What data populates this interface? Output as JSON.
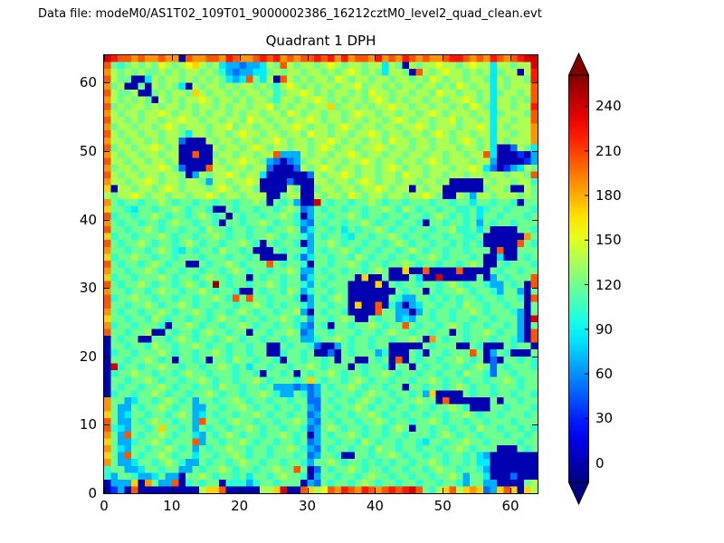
{
  "header": {
    "datafile_text": "Data file: modeM0/AS1T02_109T01_9000002386_16212cztM0_level2_quad_clean.evt"
  },
  "chart_data": {
    "type": "heatmap",
    "title": "Quadrant 1 DPH",
    "xlabel": "",
    "ylabel": "",
    "x_range": [
      0,
      64
    ],
    "y_range": [
      0,
      64
    ],
    "grid_size": 64,
    "x_ticks": [
      "0",
      "10",
      "20",
      "30",
      "40",
      "50",
      "60"
    ],
    "y_ticks": [
      "0",
      "10",
      "20",
      "30",
      "40",
      "50",
      "60"
    ],
    "colormap": "jet",
    "legend_position": "right-colorbar",
    "grid_lines": false,
    "colorbar": {
      "tick_labels": [
        "0",
        "30",
        "60",
        "90",
        "120",
        "150",
        "180",
        "210",
        "240"
      ],
      "tick_values": [
        0,
        30,
        60,
        90,
        120,
        150,
        180,
        210,
        240
      ],
      "vmin": -13,
      "vmax": 261,
      "extend": "both",
      "color_low": "#000080",
      "color_high": "#800000"
    },
    "level_scale": 17,
    "grid_encoding": "each char is hex level 0-15; value = level * 17 counts; rows listed top (y=63) to bottom (y=0)",
    "grid_rows_top_to_bottom": [
      "edccbcbbcbb0cbbccbdcbbcdcdbcbccdcdbdbccbdbcbdcbcbbcddcbcbdcbcdee",
      "c767878798789a878544344587c878878987887885870878898878988588788e",
      "b87878778787887876434455787887887878987875887 0c878988787 8578808d",
      "c877005878878787875 45c7580c878788798788788788787987887887587887d",
      "b780070878750878878788787689878788788978878788788787987 88587888c",
      "c877800787887a87887878878678898787887879887887887988788785788 78c",
      "b878787087878898788787887688788987878878987878878878898785887 87c",
      "c787887878878788787887889787887 88a7887878898878878878798758878 8d",
      "b878878898788787887878878879878878878988788788789878887885788 87c",
      "c887878878898878878879887887889878878878878987887889788785887 88c",
      "b788788789878887889788788788987887898788788788987888788985878 88b",
      "c878878878875887887898878878879887887889878878878987887885887 88b",
      "b887887878830008788788788987887889878878879887887887898785878 88b",
      "c788788987800000878878987887887898788788987887887888788785003875",
      "b878878878800c00788788788c444878878898788788788788788788c5000204",
      "c887887887800000878898874303478878878898788788789878887884000024",
      "b78878889873000c8878878830003878987887887898788788878898530 24587",
      "c878878878870487889878850000003878898788788798878878878878878 87c",
      "b887889878878874887889800003000887887898788788788780000087887886",
      "a088788789878887898788700008700788788788987880878800000078870087",
      "8788987887887889878878880078800878879878878878898700874887888787",
      "b7677677876776776776778707674 00e767767787677677767767 7577677607",
      "a77657767787677600767767767873476776776778768767767766 7567767776",
      "c67767787677678767076776778760477677876776776776787676 7577677767",
      "b767767767877677607767787677643767767787677677607767767476776777",
      "c776778767767768776776776778735776757677876776776778667570000776",
      "a677677787677677876776778767764767765776778767767767766 7000000b7",
      "c767787677678767767787607677604778767767767876776776767600000c76",
      "b77677678765767768776700076776476778767767767876776776777 0c00777",
      "a677877677677767776776700007635776776876776776778767776700500767",
      "c7677678767700767787 6777c7677607767787677677876776776787007 67776",
      "b77677876776776776787677677874476776776787 00a00c0000c00007677677",
      "a677677787677678776770767767735776777 0a0070007500e00000 70476777c",
      "c767787677678767f7677677876776476777 0000a0767767767876776447670c",
      "b776776787767787677600767768746776770000000767707677876776477407",
      "c6778776776776778 76c7c77677760476787 000000764477676767767767 760c",
      "c77677876778767767767787676776477677 0a00c0640457767768776776 7707",
      "b767767787677876776787677677840767760000c7744047677677876777 6407",
      "a776776876776776787767767787674776787 00767745477677677677677740e",
      "b677677760778767767787677677643760776778767 7c76776787677677 67407",
      "c776778007677678776770776778734776777677678776776770767787677 40c",
      "0767700776787677678767767767744677876776776778 70b76776777677640c",
      "0776776877677876776776770076776300476776770000076777007600076770",
      "0677677787677677876776770067767003076777460007607767 77c704760007",
      "0776778767077670776877677607767767077007670c076776778767 03077676",
      "0e67767787767767787675776776778767770767760770767767767873767776",
      "0677877677678776777677607767076778767767787677677677687763776777",
      "0776778767767787677677876777 67a7677678767767767787677677 67787677",
      "0767767787677677687767767444343476778767767707767767876776777677",
      "0677677876776778767767787644763477677678776776 74a000076776776776",
      "b774577678767477677876776776773376776787677677877 0c0000007077677",
      "b744767787677447767787677677674377677876776776776778760007767776",
      "a745776776787457677677876776773476776778767767767767787677677767",
      "c7447678776774c77678776776778743776776778767767787677677677 76777",
      "c6547767a77674767767787677677634787677677678707767767768776 77676",
      "b74c7677876775476787677677876704767787677677677767876776777 67767",
      "a744677876777c477677876776776734776776876776776577677877677 77677",
      "b754776778767476778776776778764376776776877677677677876777000767",
      "a74c7677876775776778767767776734776007767787677677677675400 00000",
      "b744577678764476776787767767764778767767676776778767767550000000",
      "677445776774476778767767787 7c70376778767767767767877677640000000",
      "647764457440778767767577678776047767767877677677677874775 0003000",
      "0444a0b744c067677066646776777043767767876776776776776477440 00078",
      "0240c0000000008aac0000088ae00ca89cbdcbdcbcdcdec768ac8aba34aca0a8"
    ]
  }
}
